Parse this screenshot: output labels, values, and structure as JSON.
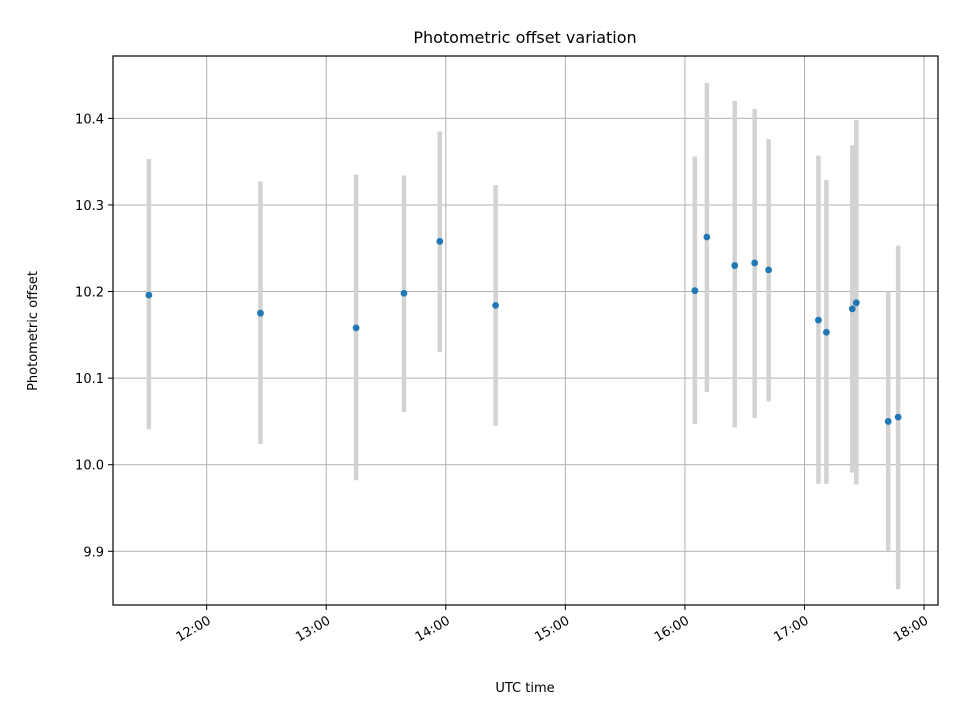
{
  "chart_data": {
    "type": "scatter",
    "title": "Photometric offset variation",
    "xlabel": "UTC time",
    "ylabel": "Photometric offset",
    "x_is_time": true,
    "xlim": [
      "11:13",
      "18:07"
    ],
    "ylim": [
      9.838,
      10.472
    ],
    "x_ticks": [
      "12:00",
      "13:00",
      "14:00",
      "15:00",
      "16:00",
      "17:00",
      "18:00"
    ],
    "y_ticks": [
      9.9,
      10.0,
      10.1,
      10.2,
      10.3,
      10.4
    ],
    "y_tick_labels": [
      "9.9",
      "10.0",
      "10.1",
      "10.2",
      "10.3",
      "10.4"
    ],
    "grid": true,
    "point_color": "#1f77b4",
    "errorbar_color": "#d3d3d3",
    "series": [
      {
        "points": [
          {
            "t": "11:31",
            "y": 10.196,
            "lo": 10.041,
            "hi": 10.353
          },
          {
            "t": "12:27",
            "y": 10.175,
            "lo": 10.024,
            "hi": 10.327
          },
          {
            "t": "13:15",
            "y": 10.158,
            "lo": 9.982,
            "hi": 10.335
          },
          {
            "t": "13:39",
            "y": 10.198,
            "lo": 10.061,
            "hi": 10.334
          },
          {
            "t": "13:57",
            "y": 10.258,
            "lo": 10.13,
            "hi": 10.385
          },
          {
            "t": "14:25",
            "y": 10.184,
            "lo": 10.045,
            "hi": 10.323
          },
          {
            "t": "16:05",
            "y": 10.201,
            "lo": 10.047,
            "hi": 10.356
          },
          {
            "t": "16:11",
            "y": 10.263,
            "lo": 10.084,
            "hi": 10.441
          },
          {
            "t": "16:25",
            "y": 10.23,
            "lo": 10.043,
            "hi": 10.42
          },
          {
            "t": "16:35",
            "y": 10.233,
            "lo": 10.054,
            "hi": 10.411
          },
          {
            "t": "16:42",
            "y": 10.225,
            "lo": 10.073,
            "hi": 10.376
          },
          {
            "t": "17:07",
            "y": 10.167,
            "lo": 9.978,
            "hi": 10.357
          },
          {
            "t": "17:11",
            "y": 10.153,
            "lo": 9.978,
            "hi": 10.329
          },
          {
            "t": "17:24",
            "y": 10.18,
            "lo": 9.991,
            "hi": 10.369
          },
          {
            "t": "17:26",
            "y": 10.187,
            "lo": 9.977,
            "hi": 10.398
          },
          {
            "t": "17:42",
            "y": 10.05,
            "lo": 9.901,
            "hi": 10.2
          },
          {
            "t": "17:47",
            "y": 10.055,
            "lo": 9.856,
            "hi": 10.253
          }
        ]
      }
    ]
  }
}
